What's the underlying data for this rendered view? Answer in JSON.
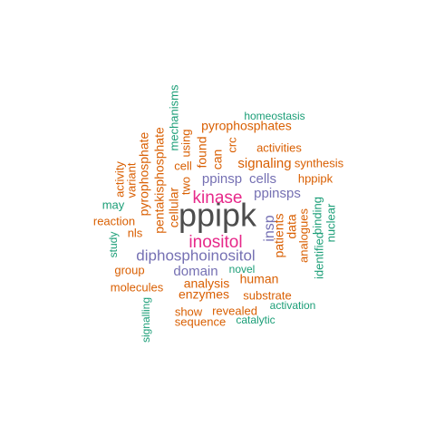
{
  "colors": {
    "dark": "#4d4d4d",
    "pink": "#e7298a",
    "purple": "#7570b3",
    "orange": "#d95f02",
    "green": "#1b9e77"
  },
  "words": [
    {
      "text": "ppipk",
      "color": "dark"
    },
    {
      "text": "kinase",
      "color": "pink"
    },
    {
      "text": "inositol",
      "color": "pink"
    },
    {
      "text": "diphosphoinositol",
      "color": "purple"
    },
    {
      "text": "ppinsp",
      "color": "purple"
    },
    {
      "text": "cells",
      "color": "purple"
    },
    {
      "text": "ppinsps",
      "color": "purple"
    },
    {
      "text": "insp",
      "color": "purple"
    },
    {
      "text": "domain",
      "color": "purple"
    },
    {
      "text": "signaling",
      "color": "orange"
    },
    {
      "text": "pyrophosphates",
      "color": "orange"
    },
    {
      "text": "pyrophosphate",
      "color": "orange"
    },
    {
      "text": "pentakisphosphate",
      "color": "orange"
    },
    {
      "text": "cellular",
      "color": "orange"
    },
    {
      "text": "cell",
      "color": "orange"
    },
    {
      "text": "two",
      "color": "orange"
    },
    {
      "text": "found",
      "color": "orange"
    },
    {
      "text": "can",
      "color": "orange"
    },
    {
      "text": "crc",
      "color": "orange"
    },
    {
      "text": "using",
      "color": "orange"
    },
    {
      "text": "activities",
      "color": "orange"
    },
    {
      "text": "synthesis",
      "color": "orange"
    },
    {
      "text": "hppipk",
      "color": "orange"
    },
    {
      "text": "patients",
      "color": "orange"
    },
    {
      "text": "data",
      "color": "orange"
    },
    {
      "text": "analogues",
      "color": "orange"
    },
    {
      "text": "human",
      "color": "orange"
    },
    {
      "text": "analysis",
      "color": "orange"
    },
    {
      "text": "enzymes",
      "color": "orange"
    },
    {
      "text": "substrate",
      "color": "orange"
    },
    {
      "text": "molecules",
      "color": "orange"
    },
    {
      "text": "group",
      "color": "orange"
    },
    {
      "text": "reaction",
      "color": "orange"
    },
    {
      "text": "nls",
      "color": "orange"
    },
    {
      "text": "variant",
      "color": "orange"
    },
    {
      "text": "activity",
      "color": "orange"
    },
    {
      "text": "show",
      "color": "orange"
    },
    {
      "text": "revealed",
      "color": "orange"
    },
    {
      "text": "sequence",
      "color": "orange"
    },
    {
      "text": "homeostasis",
      "color": "green"
    },
    {
      "text": "mechanisms",
      "color": "green"
    },
    {
      "text": "may",
      "color": "green"
    },
    {
      "text": "study",
      "color": "green"
    },
    {
      "text": "signalling",
      "color": "green"
    },
    {
      "text": "novel",
      "color": "green"
    },
    {
      "text": "activation",
      "color": "green"
    },
    {
      "text": "catalytic",
      "color": "green"
    },
    {
      "text": "identified",
      "color": "green"
    },
    {
      "text": "binding",
      "color": "green"
    },
    {
      "text": "nuclear",
      "color": "green"
    }
  ]
}
